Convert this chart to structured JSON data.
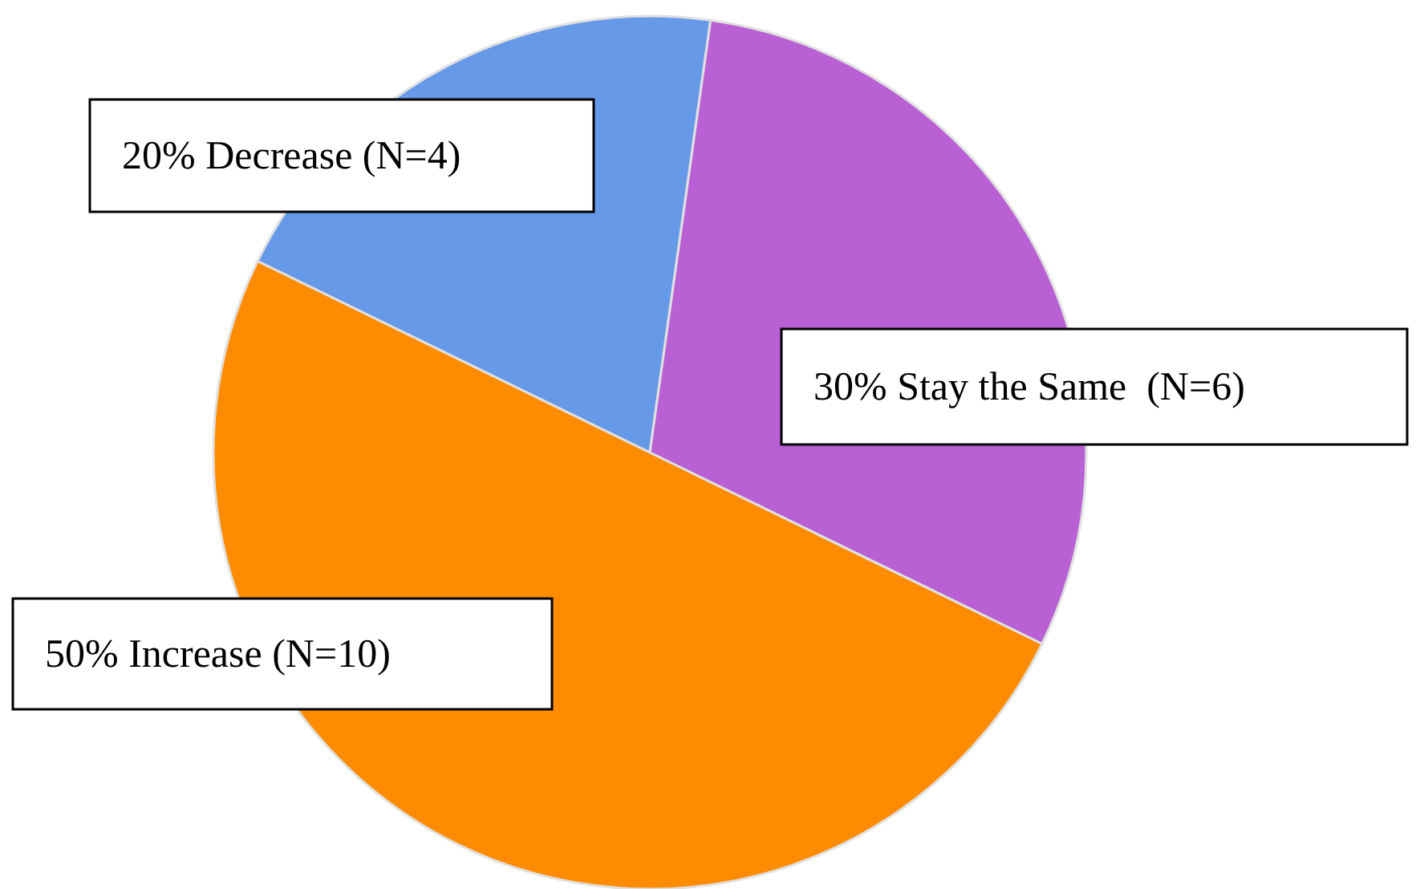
{
  "chart_data": {
    "type": "pie",
    "categories": [
      "20% Decrease (N=4)",
      "30% Stay the Same  (N=6)",
      "50% Increase (N=10)"
    ],
    "values": [
      20,
      30,
      50
    ],
    "colors": [
      "#6699e8",
      "#b860d4",
      "#ff8c00"
    ]
  }
}
